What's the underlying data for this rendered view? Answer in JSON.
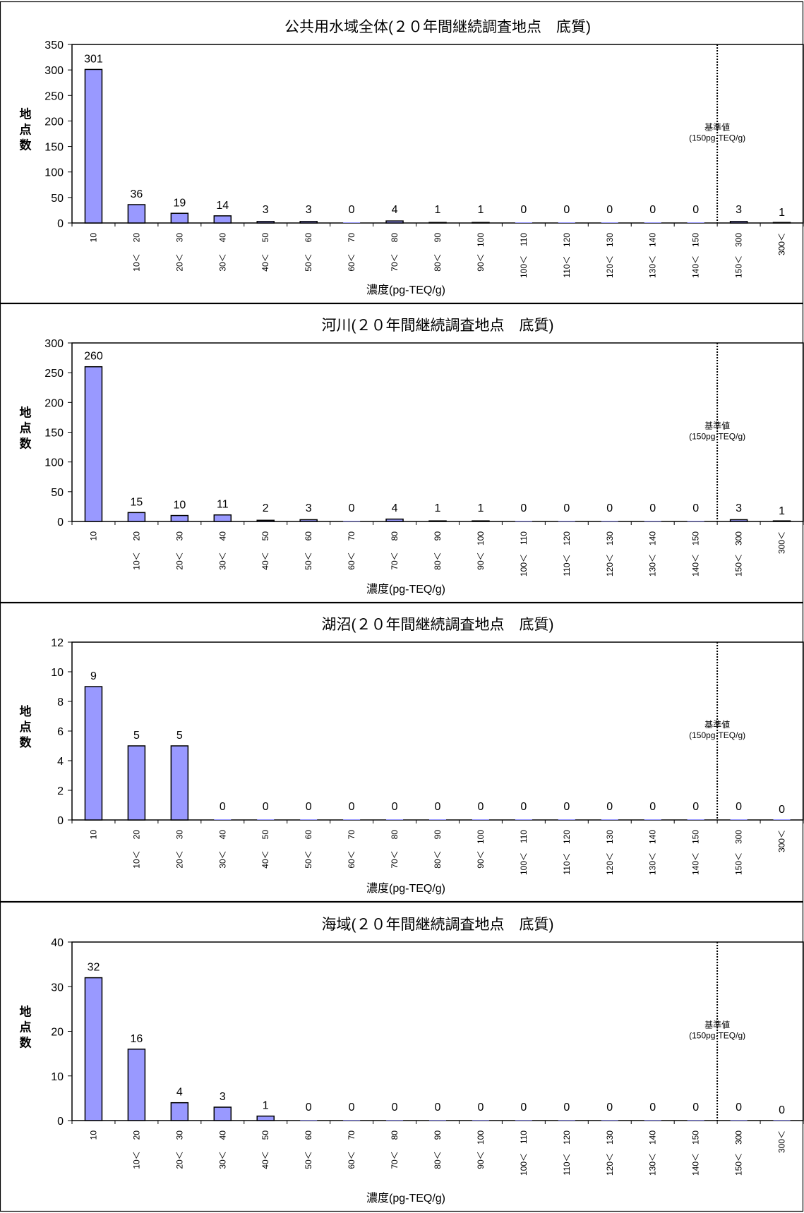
{
  "chart_data": [
    {
      "type": "bar",
      "title": "公共用水域全体(２０年間継続調査地点　底質)",
      "ylabel": "地点数",
      "xlabel": "濃度(pg-TEQ/g)",
      "upper_ticks": [
        "10",
        "20",
        "30",
        "40",
        "50",
        "60",
        "70",
        "80",
        "90",
        "100",
        "110",
        "120",
        "130",
        "140",
        "150",
        "300",
        "300＜"
      ],
      "lower_ticks": [
        "",
        "10＜",
        "20＜",
        "30＜",
        "40＜",
        "50＜",
        "60＜",
        "70＜",
        "80＜",
        "90＜",
        "100＜",
        "110＜",
        "120＜",
        "130＜",
        "140＜",
        "150＜",
        ""
      ],
      "values": [
        301,
        36,
        19,
        14,
        3,
        3,
        0,
        4,
        1,
        1,
        0,
        0,
        0,
        0,
        0,
        3,
        1
      ],
      "ylim": [
        0,
        350
      ],
      "yticks": [
        0,
        50,
        100,
        150,
        200,
        250,
        300,
        350
      ],
      "reference_label": [
        "基準値",
        "(150pg-TEQ/g)"
      ],
      "reference_after_index": 14,
      "bar_color": "#9999ff"
    },
    {
      "type": "bar",
      "title": "河川(２０年間継続調査地点　底質)",
      "ylabel": "地点数",
      "xlabel": "濃度(pg-TEQ/g)",
      "upper_ticks": [
        "10",
        "20",
        "30",
        "40",
        "50",
        "60",
        "70",
        "80",
        "90",
        "100",
        "110",
        "120",
        "130",
        "140",
        "150",
        "300",
        "300＜"
      ],
      "lower_ticks": [
        "",
        "10＜",
        "20＜",
        "30＜",
        "40＜",
        "50＜",
        "60＜",
        "70＜",
        "80＜",
        "90＜",
        "100＜",
        "110＜",
        "120＜",
        "130＜",
        "140＜",
        "150＜",
        ""
      ],
      "values": [
        260,
        15,
        10,
        11,
        2,
        3,
        0,
        4,
        1,
        1,
        0,
        0,
        0,
        0,
        0,
        3,
        1
      ],
      "ylim": [
        0,
        300
      ],
      "yticks": [
        0,
        50,
        100,
        150,
        200,
        250,
        300
      ],
      "reference_label": [
        "基準値",
        "(150pg-TEQ/g)"
      ],
      "reference_after_index": 14,
      "bar_color": "#9999ff"
    },
    {
      "type": "bar",
      "title": "湖沼(２０年間継続調査地点　底質)",
      "ylabel": "地点数",
      "xlabel": "濃度(pg-TEQ/g)",
      "upper_ticks": [
        "10",
        "20",
        "30",
        "40",
        "50",
        "60",
        "70",
        "80",
        "90",
        "100",
        "110",
        "120",
        "130",
        "140",
        "150",
        "300",
        "300＜"
      ],
      "lower_ticks": [
        "",
        "10＜",
        "20＜",
        "30＜",
        "40＜",
        "50＜",
        "60＜",
        "70＜",
        "80＜",
        "90＜",
        "100＜",
        "110＜",
        "120＜",
        "130＜",
        "140＜",
        "150＜",
        ""
      ],
      "values": [
        9,
        5,
        5,
        0,
        0,
        0,
        0,
        0,
        0,
        0,
        0,
        0,
        0,
        0,
        0,
        0,
        0
      ],
      "ylim": [
        0,
        12
      ],
      "yticks": [
        0,
        2,
        4,
        6,
        8,
        10,
        12
      ],
      "reference_label": [
        "基準値",
        "(150pg-TEQ/g)"
      ],
      "reference_after_index": 14,
      "bar_color": "#9999ff"
    },
    {
      "type": "bar",
      "title": "海域(２０年間継続調査地点　底質)",
      "ylabel": "地点数",
      "xlabel": "濃度(pg-TEQ/g)",
      "upper_ticks": [
        "10",
        "20",
        "30",
        "40",
        "50",
        "60",
        "70",
        "80",
        "90",
        "100",
        "110",
        "120",
        "130",
        "140",
        "150",
        "300",
        "300＜"
      ],
      "lower_ticks": [
        "",
        "10＜",
        "20＜",
        "30＜",
        "40＜",
        "50＜",
        "60＜",
        "70＜",
        "80＜",
        "90＜",
        "100＜",
        "110＜",
        "120＜",
        "130＜",
        "140＜",
        "150＜",
        ""
      ],
      "values": [
        32,
        16,
        4,
        3,
        1,
        0,
        0,
        0,
        0,
        0,
        0,
        0,
        0,
        0,
        0,
        0,
        0
      ],
      "ylim": [
        0,
        40
      ],
      "yticks": [
        0,
        10,
        20,
        30,
        40
      ],
      "reference_label": [
        "基準値",
        "(150pg-TEQ/g)"
      ],
      "reference_after_index": 14,
      "bar_color": "#9999ff"
    }
  ]
}
